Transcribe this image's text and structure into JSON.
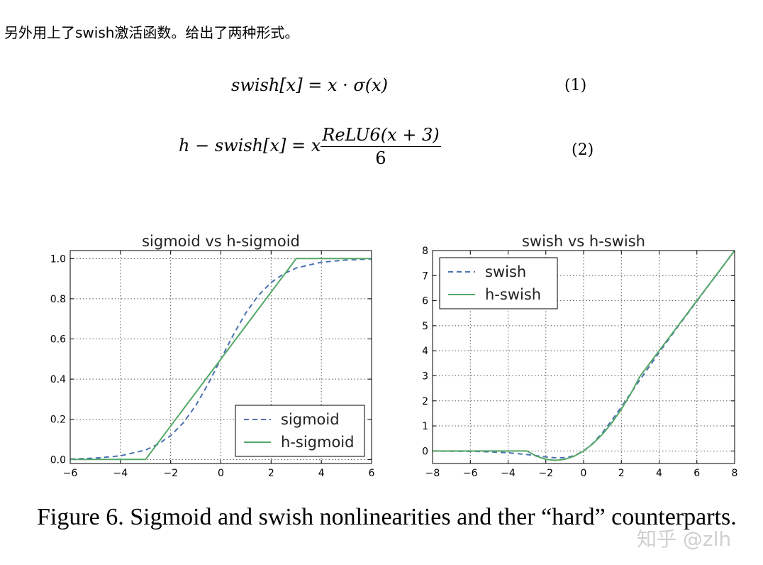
{
  "intro": {
    "text": "另外用上了swish激活函数。给出了两种形式。"
  },
  "equations": [
    {
      "lhs": "swish[x] = x · σ(x)",
      "number": "(1)"
    },
    {
      "lhs_prefix": "h − swish[x] = x",
      "numerator": "ReLU6(x + 3)",
      "denominator": "6",
      "number": "(2)"
    }
  ],
  "colors": {
    "dashed_series": "#4c72b0",
    "solid_series": "#55a868",
    "grid": "#555555"
  },
  "chart_data": [
    {
      "type": "line",
      "title": "sigmoid vs h-sigmoid",
      "xlabel": "",
      "ylabel": "",
      "xlim": [
        -6,
        6
      ],
      "ylim": [
        -0.02,
        1.04
      ],
      "xticks": [
        -6,
        -4,
        -2,
        0,
        2,
        4,
        6
      ],
      "xticklabels": [
        "−6",
        "−4",
        "−2",
        "0",
        "2",
        "4",
        "6"
      ],
      "yticks": [
        0.0,
        0.2,
        0.4,
        0.6,
        0.8,
        1.0
      ],
      "yticklabels": [
        "0.0",
        "0.2",
        "0.4",
        "0.6",
        "0.8",
        "1.0"
      ],
      "grid": true,
      "legend_position": "bottom-right",
      "series": [
        {
          "name": "sigmoid",
          "style": "dashed",
          "x": [
            -6,
            -5,
            -4,
            -3,
            -2.5,
            -2,
            -1.5,
            -1,
            -0.5,
            0,
            0.5,
            1,
            1.5,
            2,
            2.5,
            3,
            4,
            5,
            6
          ],
          "y": [
            0.002,
            0.007,
            0.018,
            0.047,
            0.076,
            0.119,
            0.182,
            0.269,
            0.378,
            0.5,
            0.622,
            0.731,
            0.818,
            0.881,
            0.924,
            0.953,
            0.982,
            0.993,
            0.998
          ]
        },
        {
          "name": "h-sigmoid",
          "style": "solid",
          "x": [
            -6,
            -3,
            3,
            6
          ],
          "y": [
            0,
            0,
            1,
            1
          ]
        }
      ]
    },
    {
      "type": "line",
      "title": "swish vs h-swish",
      "xlabel": "",
      "ylabel": "",
      "xlim": [
        -8,
        8
      ],
      "ylim": [
        -0.5,
        8
      ],
      "xticks": [
        -8,
        -6,
        -4,
        -2,
        0,
        2,
        4,
        6,
        8
      ],
      "xticklabels": [
        "−8",
        "−6",
        "−4",
        "−2",
        "0",
        "2",
        "4",
        "6",
        "8"
      ],
      "yticks": [
        0,
        1,
        2,
        3,
        4,
        5,
        6,
        7,
        8
      ],
      "yticklabels": [
        "0",
        "1",
        "2",
        "3",
        "4",
        "5",
        "6",
        "7",
        "8"
      ],
      "grid": true,
      "legend_position": "top-left",
      "series": [
        {
          "name": "swish",
          "style": "dashed",
          "x": [
            -8,
            -6,
            -5,
            -4,
            -3,
            -2.5,
            -2,
            -1.5,
            -1,
            -0.5,
            0,
            0.5,
            1,
            1.5,
            2,
            2.5,
            3,
            4,
            5,
            6,
            7,
            8
          ],
          "y": [
            -0.003,
            -0.015,
            -0.033,
            -0.072,
            -0.142,
            -0.19,
            -0.238,
            -0.274,
            -0.269,
            -0.189,
            0,
            0.311,
            0.731,
            1.227,
            1.762,
            2.311,
            2.858,
            3.928,
            4.967,
            5.985,
            6.994,
            7.997
          ]
        },
        {
          "name": "h-swish",
          "style": "solid",
          "x": [
            -8,
            -3,
            -2.5,
            -2,
            -1.5,
            -1,
            -0.5,
            0,
            0.5,
            1,
            1.5,
            2,
            2.5,
            3,
            8
          ],
          "y": [
            0,
            0,
            -0.208,
            -0.333,
            -0.375,
            -0.333,
            -0.208,
            0,
            0.292,
            0.667,
            1.125,
            1.667,
            2.292,
            3,
            8
          ]
        }
      ]
    }
  ],
  "caption": {
    "text": "Figure 6. Sigmoid and swish nonlinearities and ther “hard” counterparts."
  },
  "watermark": {
    "text": "知乎 @zlh"
  }
}
